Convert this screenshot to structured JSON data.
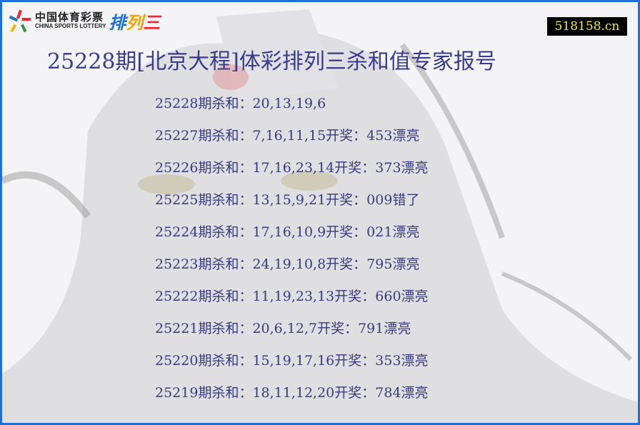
{
  "logo": {
    "cn": "中国体育彩票",
    "en": "CHINA SPORTS LOTTERY",
    "game": "排列三"
  },
  "site_badge": "518158.cn",
  "title": "25228期[北京大程]体彩排列三杀和值专家报号",
  "colors": {
    "border": "#1f6fd8",
    "text": "#3a3a80",
    "badge_bg": "#000000",
    "badge_text": "#f5e63a"
  },
  "rows": [
    {
      "text": "25228期杀和：20,13,19,6"
    },
    {
      "text": "25227期杀和：7,16,11,15开奖：453漂亮"
    },
    {
      "text": "25226期杀和：17,16,23,14开奖：373漂亮"
    },
    {
      "text": "25225期杀和：13,15,9,21开奖：009错了"
    },
    {
      "text": "25224期杀和：17,16,10,9开奖：021漂亮"
    },
    {
      "text": "25223期杀和：24,19,10,8开奖：795漂亮"
    },
    {
      "text": "25222期杀和：11,19,23,13开奖：660漂亮"
    },
    {
      "text": "25221期杀和：20,6,12,7开奖：791漂亮"
    },
    {
      "text": "25220期杀和：15,19,17,16开奖：353漂亮"
    },
    {
      "text": "25219期杀和：18,11,12,20开奖：784漂亮"
    }
  ]
}
